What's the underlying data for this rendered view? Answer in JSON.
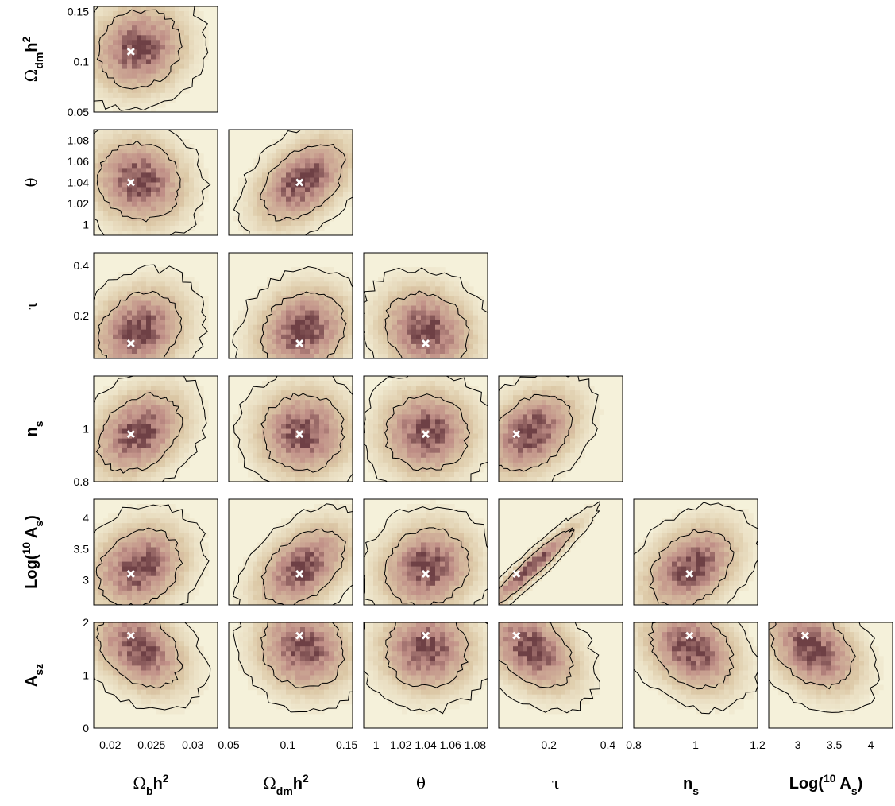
{
  "chart_data": {
    "type": "heatmap",
    "description_type": "corner plot of 2D marginalized posteriors with 68%/95% contours and fiducial markers",
    "parameters": [
      {
        "key": "omega_b",
        "label_main": "Ω",
        "label_sub": "b",
        "label_tail": "h",
        "label_sup": "2",
        "range": [
          0.018,
          0.033
        ],
        "ticks": [
          "0.02",
          "0.025",
          "0.03"
        ],
        "tick_values": [
          0.02,
          0.025,
          0.03
        ],
        "fiducial": 0.0225
      },
      {
        "key": "omega_dm",
        "label_main": "Ω",
        "label_sub": "dm",
        "label_tail": "h",
        "label_sup": "2",
        "range": [
          0.05,
          0.155
        ],
        "ticks": [
          "0.05",
          "0.1",
          "0.15"
        ],
        "tick_values": [
          0.05,
          0.1,
          0.15
        ],
        "fiducial": 0.11
      },
      {
        "key": "theta",
        "label_main": "θ",
        "label_sub": "",
        "label_tail": "",
        "label_sup": "",
        "range": [
          0.99,
          1.09
        ],
        "ticks": [
          "1",
          "1.02",
          "1.04",
          "1.06",
          "1.08"
        ],
        "tick_values": [
          1.0,
          1.02,
          1.04,
          1.06,
          1.08
        ],
        "fiducial": 1.04
      },
      {
        "key": "tau",
        "label_main": "τ",
        "label_sub": "",
        "label_tail": "",
        "label_sup": "",
        "range": [
          0.03,
          0.45
        ],
        "ticks": [
          "0.2",
          "0.4"
        ],
        "tick_values": [
          0.2,
          0.4
        ],
        "fiducial": 0.09
      },
      {
        "key": "n_s",
        "label_main": "n",
        "label_sub": "s",
        "label_tail": "",
        "label_sup": "",
        "range": [
          0.8,
          1.2
        ],
        "ticks": [
          "0.8",
          "1",
          "1.2"
        ],
        "tick_values": [
          0.8,
          1.0,
          1.2
        ],
        "fiducial": 0.98
      },
      {
        "key": "log_as",
        "label_main": "Log(10",
        "label_sup_inner": "10",
        "label_prefix": "Log(10",
        "label_after": " A",
        "label_sub": "s",
        "label_close": ")",
        "range": [
          2.6,
          4.3
        ],
        "ticks": [
          "3",
          "3.5",
          "4"
        ],
        "tick_values": [
          3.0,
          3.5,
          4.0
        ],
        "fiducial": 3.1
      },
      {
        "key": "a_sz",
        "label_main": "A",
        "label_sub": "sz",
        "label_tail": "",
        "label_sup": "",
        "range": [
          0.0,
          2.0
        ],
        "ticks": [
          "0",
          "1",
          "2"
        ],
        "tick_values": [
          0,
          1,
          2
        ],
        "fiducial": 1.75
      }
    ],
    "row_parameters": [
      "omega_dm",
      "theta",
      "tau",
      "n_s",
      "log_as",
      "a_sz"
    ],
    "col_parameters": [
      "omega_b",
      "omega_dm",
      "theta",
      "tau",
      "n_s",
      "log_as"
    ],
    "y_ticks_shown": {
      "omega_dm": [
        "0.05",
        "0.1",
        "0.15"
      ],
      "theta": [
        "1",
        "1.02",
        "1.04",
        "1.06",
        "1.08"
      ],
      "tau": [
        "0.2",
        "0.4"
      ],
      "n_s": [
        "0.8",
        "1"
      ],
      "log_as": [
        "3",
        "3.5",
        "4"
      ],
      "a_sz": [
        "0",
        "1",
        "2"
      ]
    },
    "y_tick_values": {
      "omega_dm": [
        0.05,
        0.1,
        0.15
      ],
      "theta": [
        1.0,
        1.02,
        1.04,
        1.06,
        1.08
      ],
      "tau": [
        0.2,
        0.4
      ],
      "n_s": [
        0.8,
        1.0
      ],
      "log_as": [
        3.0,
        3.5,
        4.0
      ],
      "a_sz": [
        0,
        1,
        2
      ]
    },
    "posterior_peaks": {
      "omega_b": 0.0235,
      "omega_dm": 0.113,
      "theta": 1.041,
      "tau": 0.14,
      "n_s": 0.985,
      "log_as": 3.2,
      "a_sz": 1.5
    },
    "correlations": {
      "omega_dm|omega_b": 0.1,
      "theta|omega_b": -0.1,
      "theta|omega_dm": 0.45,
      "tau|omega_b": 0.2,
      "tau|omega_dm": 0.15,
      "tau|theta": -0.15,
      "n_s|omega_b": 0.3,
      "n_s|omega_dm": 0.0,
      "n_s|theta": 0.0,
      "n_s|tau": 0.35,
      "log_as|omega_b": 0.2,
      "log_as|omega_dm": 0.45,
      "log_as|theta": 0.1,
      "log_as|tau": 0.95,
      "log_as|n_s": 0.35,
      "a_sz|omega_b": -0.35,
      "a_sz|omega_dm": -0.1,
      "a_sz|theta": 0.0,
      "a_sz|tau": -0.4,
      "a_sz|n_s": -0.3,
      "a_sz|log_as": -0.35
    },
    "contour_levels": [
      "68%",
      "95%"
    ],
    "fiducial_marker": "white-x",
    "colors": {
      "background": "#f5f1da",
      "outer": "#dcc8a6",
      "mid": "#c08f87",
      "core": "#6e4045",
      "contour": "#000000",
      "marker": "#ffffff"
    }
  }
}
